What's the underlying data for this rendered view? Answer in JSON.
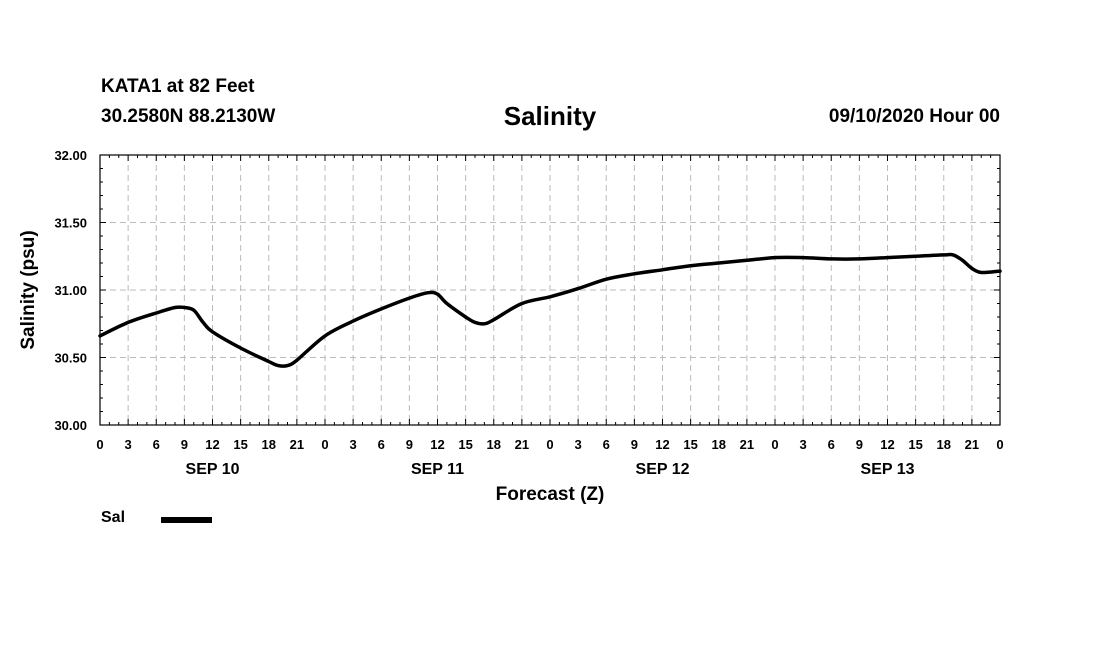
{
  "header": {
    "station": "KATA1 at 82 Feet",
    "coords": "30.2580N 88.2130W",
    "run_time": "09/10/2020 Hour 00"
  },
  "legend": {
    "label": "Sal",
    "color": "#000000"
  },
  "chart_data": {
    "type": "line",
    "title": "Salinity",
    "xlabel": "Forecast (Z)",
    "ylabel": "Salinity (psu)",
    "ylim": [
      30.0,
      32.0
    ],
    "xlim_hours": [
      0,
      96
    ],
    "y_ticks": [
      "30.00",
      "30.50",
      "31.00",
      "31.50",
      "32.00"
    ],
    "x_tick_labels": [
      "0",
      "3",
      "6",
      "9",
      "12",
      "15",
      "18",
      "21",
      "0",
      "3",
      "6",
      "9",
      "12",
      "15",
      "18",
      "21",
      "0",
      "3",
      "6",
      "9",
      "12",
      "15",
      "18",
      "21",
      "0",
      "3",
      "6",
      "9",
      "12",
      "15",
      "18",
      "21",
      "0"
    ],
    "day_labels": [
      {
        "label": "SEP 10",
        "hour": 12
      },
      {
        "label": "SEP 11",
        "hour": 36
      },
      {
        "label": "SEP 12",
        "hour": 60
      },
      {
        "label": "SEP 13",
        "hour": 84
      }
    ],
    "grid": true,
    "series": [
      {
        "name": "Sal",
        "color": "#000000",
        "x": [
          0,
          3,
          6,
          8,
          9,
          10,
          11,
          12,
          15,
          18,
          19,
          20,
          21,
          24,
          27,
          30,
          33,
          35,
          36,
          37,
          39,
          40,
          41,
          42,
          45,
          48,
          51,
          54,
          57,
          60,
          63,
          66,
          69,
          72,
          75,
          78,
          81,
          84,
          87,
          90,
          91,
          92,
          93,
          94,
          96
        ],
        "values": [
          30.66,
          30.76,
          30.83,
          30.87,
          30.87,
          30.85,
          30.76,
          30.69,
          30.57,
          30.47,
          30.44,
          30.44,
          30.48,
          30.66,
          30.77,
          30.86,
          30.94,
          30.98,
          30.97,
          30.9,
          30.8,
          30.76,
          30.75,
          30.78,
          30.9,
          30.95,
          31.01,
          31.08,
          31.12,
          31.15,
          31.18,
          31.2,
          31.22,
          31.24,
          31.24,
          31.23,
          31.23,
          31.24,
          31.25,
          31.26,
          31.26,
          31.22,
          31.16,
          31.13,
          31.14
        ]
      }
    ]
  }
}
